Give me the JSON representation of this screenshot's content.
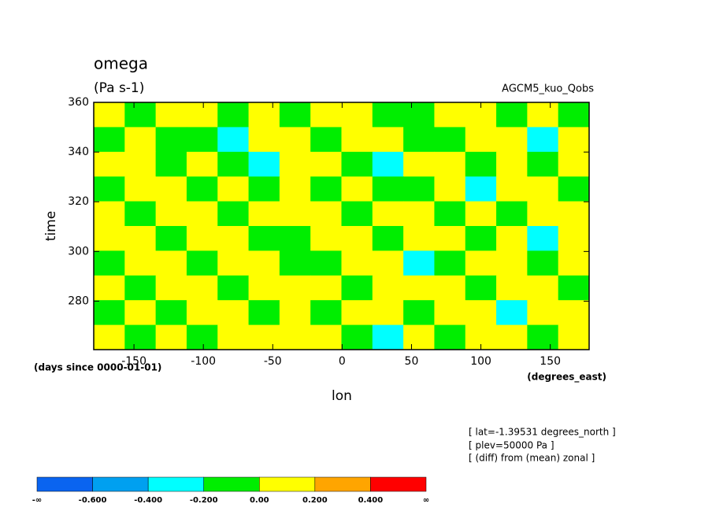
{
  "chart_data": {
    "type": "contour",
    "title": "omega",
    "units": "(Pa s-1)",
    "dataset": "AGCM5_kuo_Qobs",
    "xlabel": "lon",
    "ylabel": "time",
    "xunits": "(degrees_east)",
    "yunits": "(days since 0000-01-01)",
    "notes": [
      "[ lat=-1.39531 degrees_north ]",
      "[ plev=50000 Pa ]",
      "[ (diff) from (mean) zonal ]"
    ],
    "xlim": [
      -179,
      178
    ],
    "ylim": [
      260.5,
      360
    ],
    "xticks": [
      -150,
      -100,
      -50,
      0,
      50,
      100,
      150
    ],
    "yticks": [
      280,
      300,
      320,
      340,
      360
    ],
    "z": [
      [
        0.05,
        -0.1,
        0.05,
        0.1,
        -0.1,
        0.05,
        -0.05,
        0.1,
        0.05,
        -0.1,
        -0.1,
        0.05,
        0.1,
        -0.05,
        0.05,
        -0.1
      ],
      [
        -0.1,
        0.05,
        -0.05,
        -0.1,
        -0.25,
        0.05,
        0.1,
        -0.1,
        0.05,
        0.05,
        -0.05,
        -0.1,
        0.05,
        0.1,
        -0.25,
        0.05
      ],
      [
        0.05,
        0.1,
        -0.1,
        0.05,
        -0.1,
        -0.25,
        0.05,
        0.05,
        -0.1,
        -0.25,
        0.05,
        0.1,
        -0.1,
        0.05,
        -0.05,
        0.1
      ],
      [
        -0.05,
        0.05,
        0.1,
        -0.1,
        0.05,
        -0.1,
        0.05,
        -0.1,
        0.05,
        -0.05,
        -0.1,
        0.05,
        -0.25,
        0.05,
        0.1,
        -0.1
      ],
      [
        0.1,
        -0.1,
        0.05,
        0.05,
        -0.1,
        0.05,
        0.1,
        0.05,
        -0.1,
        0.05,
        0.1,
        -0.1,
        0.05,
        -0.1,
        0.05,
        0.05
      ],
      [
        0.05,
        0.05,
        -0.1,
        0.1,
        0.05,
        -0.1,
        -0.05,
        0.1,
        0.05,
        -0.1,
        0.05,
        0.05,
        -0.1,
        0.1,
        -0.25,
        0.05
      ],
      [
        -0.1,
        0.05,
        0.05,
        -0.1,
        0.1,
        0.05,
        -0.1,
        -0.1,
        0.05,
        0.1,
        -0.25,
        -0.1,
        0.05,
        0.05,
        -0.1,
        0.1
      ],
      [
        0.05,
        -0.1,
        0.1,
        0.05,
        -0.05,
        0.1,
        0.05,
        0.05,
        -0.1,
        0.05,
        0.1,
        0.05,
        -0.1,
        0.05,
        0.05,
        -0.1
      ],
      [
        -0.1,
        0.05,
        -0.1,
        0.05,
        0.1,
        -0.1,
        0.05,
        -0.1,
        0.05,
        0.1,
        -0.1,
        0.05,
        0.05,
        -0.25,
        0.1,
        0.05
      ],
      [
        0.05,
        -0.1,
        0.05,
        -0.1,
        0.05,
        0.05,
        0.1,
        0.05,
        -0.1,
        -0.25,
        0.05,
        -0.1,
        0.1,
        0.05,
        -0.1,
        0.05
      ]
    ],
    "colorbar": {
      "colors": [
        "#0a64f0",
        "#00a0f0",
        "#00ffff",
        "#00ee00",
        "#ffff00",
        "#ffa500",
        "#ff0000"
      ],
      "ticks": [
        {
          "label": "-∞"
        },
        {
          "value": -0.6,
          "label": "-0.600"
        },
        {
          "value": -0.4,
          "label": "-0.400"
        },
        {
          "value": -0.2,
          "label": "-0.200"
        },
        {
          "value": 0,
          "label": "0.00"
        },
        {
          "value": 0.2,
          "label": "0.200"
        },
        {
          "value": 0.4,
          "label": "0.400"
        },
        {
          "label": "∞"
        }
      ]
    }
  }
}
